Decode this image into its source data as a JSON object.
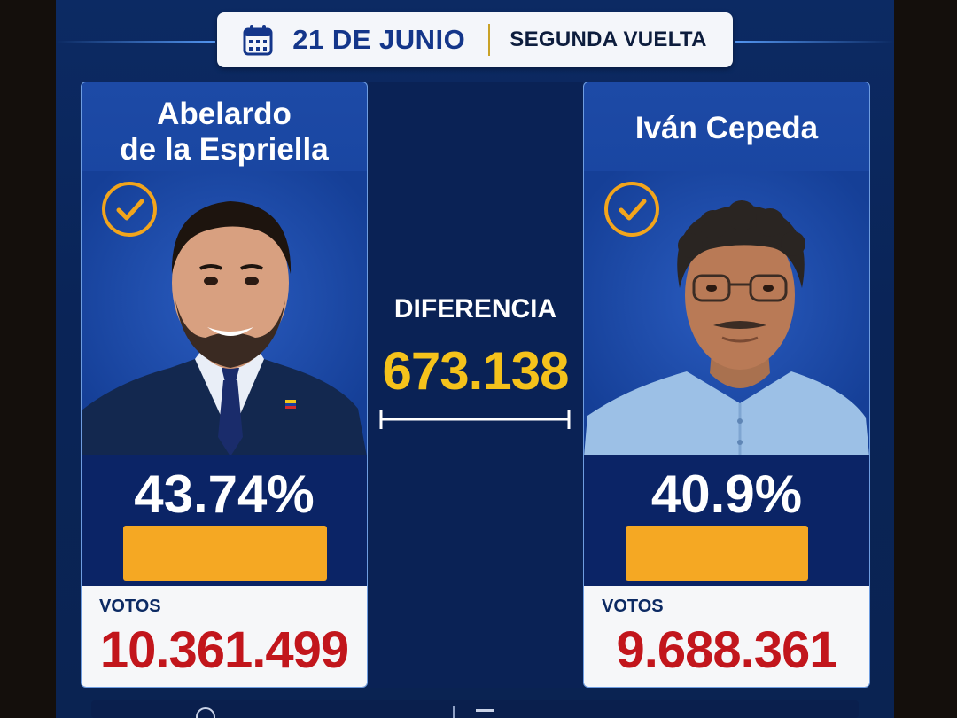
{
  "header": {
    "date": "21 DE JUNIO",
    "round": "SEGUNDA VUELTA",
    "calendar_icon": "calendar-icon"
  },
  "candidates": [
    {
      "name_line1": "Abelardo",
      "name_line2": "de la Espriella",
      "percent": "43.74%",
      "bar_fraction": 0.4374,
      "votes_label": "VOTOS",
      "votes": "10.361.499",
      "check_icon": "checkmark-circle-icon"
    },
    {
      "name_line1": "Iván Cepeda",
      "name_line2": "",
      "percent": "40.9%",
      "bar_fraction": 0.409,
      "votes_label": "VOTOS",
      "votes": "9.688.361",
      "check_icon": "checkmark-circle-icon"
    }
  ],
  "difference": {
    "label": "DIFERENCIA",
    "value": "673.138"
  },
  "colors": {
    "background": "#0c2a63",
    "accent_orange": "#f5a823",
    "accent_yellow": "#f5c21b",
    "votes_red": "#c2161c"
  }
}
